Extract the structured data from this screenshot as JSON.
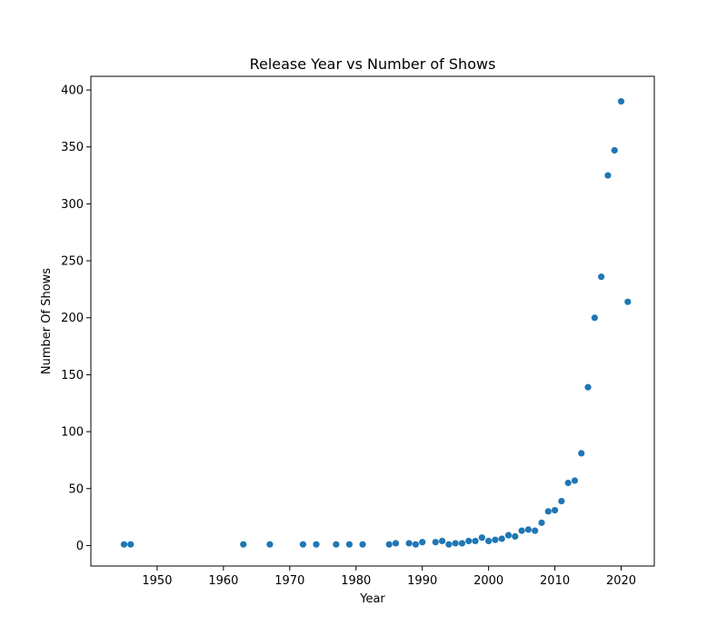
{
  "chart_data": {
    "type": "scatter",
    "title": "Release Year vs Number of Shows",
    "xlabel": "Year",
    "ylabel": "Number Of Shows",
    "xlim": [
      1940,
      2025
    ],
    "ylim": [
      -18,
      412
    ],
    "xticks": [
      1950,
      1960,
      1970,
      1980,
      1990,
      2000,
      2010,
      2020
    ],
    "yticks": [
      0,
      50,
      100,
      150,
      200,
      250,
      300,
      350,
      400
    ],
    "grid": false,
    "marker_color": "#1f77b4",
    "series": [
      {
        "x": [
          1945,
          1946,
          1963,
          1967,
          1972,
          1974,
          1977,
          1979,
          1981,
          1985,
          1986,
          1988,
          1989,
          1990,
          1992,
          1993,
          1994,
          1995,
          1996,
          1997,
          1998,
          1999,
          2000,
          2001,
          2002,
          2003,
          2004,
          2005,
          2006,
          2007,
          2008,
          2009,
          2010,
          2011,
          2012,
          2013,
          2014,
          2015,
          2016,
          2017,
          2018,
          2019,
          2020,
          2021
        ],
        "y": [
          1,
          1,
          1,
          1,
          1,
          1,
          1,
          1,
          1,
          1,
          2,
          2,
          1,
          3,
          3,
          4,
          1,
          2,
          2,
          4,
          4,
          7,
          4,
          5,
          6,
          9,
          8,
          13,
          14,
          13,
          20,
          30,
          31,
          39,
          55,
          57,
          81,
          139,
          200,
          236,
          325,
          347,
          390,
          214
        ]
      }
    ]
  }
}
